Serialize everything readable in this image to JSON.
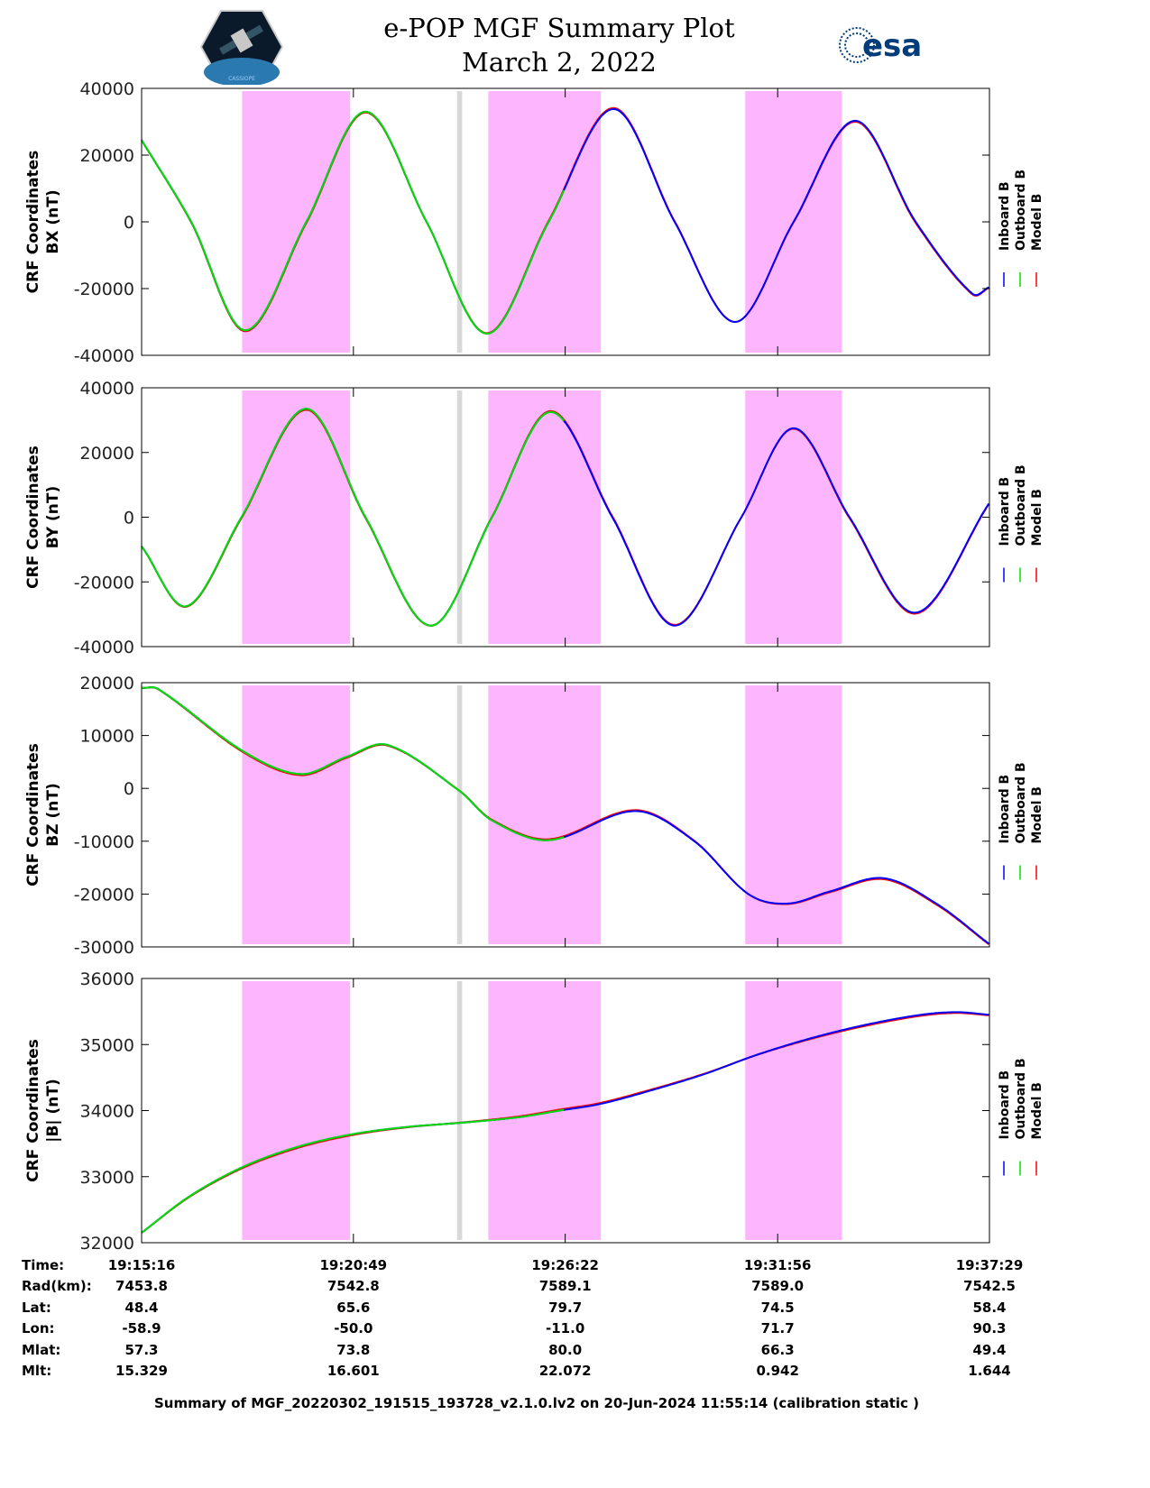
{
  "header": {
    "title": "e-POP MGF Summary Plot",
    "date": "March 2, 2022",
    "logo_left_text": "CASSIOPE",
    "logo_right_text": "esa"
  },
  "chart_data": [
    {
      "type": "line",
      "title": "",
      "ylabel": [
        "CRF Coordinates",
        "BX (nT)"
      ],
      "ylim": [
        -40000,
        40000
      ],
      "yticks": [
        40000,
        20000,
        0,
        -20000,
        -40000
      ],
      "points": [
        [
          0,
          24500
        ],
        [
          78,
          0
        ],
        [
          163,
          -32500
        ],
        [
          259,
          0
        ],
        [
          352,
          33000
        ],
        [
          448,
          0
        ],
        [
          543,
          -33500
        ],
        [
          640,
          0
        ],
        [
          742,
          33800
        ],
        [
          838,
          0
        ],
        [
          933,
          -30000
        ],
        [
          1025,
          0
        ],
        [
          1122,
          30300
        ],
        [
          1217,
          0
        ],
        [
          1306,
          -21500
        ],
        [
          1333,
          -19500
        ]
      ]
    },
    {
      "type": "line",
      "title": "",
      "ylabel": [
        "CRF Coordinates",
        "BY (nT)"
      ],
      "ylim": [
        -40000,
        40000
      ],
      "yticks": [
        40000,
        20000,
        0,
        -20000,
        -40000
      ],
      "points": [
        [
          0,
          -9000
        ],
        [
          71,
          -27500
        ],
        [
          157,
          0
        ],
        [
          259,
          33500
        ],
        [
          352,
          0
        ],
        [
          455,
          -33500
        ],
        [
          551,
          0
        ],
        [
          643,
          32500
        ],
        [
          740,
          0
        ],
        [
          838,
          -33500
        ],
        [
          943,
          0
        ],
        [
          1025,
          27500
        ],
        [
          1113,
          0
        ],
        [
          1217,
          -29500
        ],
        [
          1333,
          4500
        ]
      ]
    },
    {
      "type": "line",
      "title": "",
      "ylabel": [
        "CRF Coordinates",
        "BZ (nT)"
      ],
      "ylim": [
        -30000,
        20000
      ],
      "yticks": [
        20000,
        10000,
        0,
        -10000,
        -20000,
        -30000
      ],
      "points": [
        [
          0,
          19000
        ],
        [
          26,
          18800
        ],
        [
          160,
          7000
        ],
        [
          250,
          2700
        ],
        [
          323,
          6000
        ],
        [
          387,
          8200
        ],
        [
          500,
          -500
        ],
        [
          550,
          -6000
        ],
        [
          640,
          -9800
        ],
        [
          777,
          -4300
        ],
        [
          869,
          -10000
        ],
        [
          954,
          -20000
        ],
        [
          1015,
          -21800
        ],
        [
          1082,
          -19500
        ],
        [
          1167,
          -17000
        ],
        [
          1252,
          -22000
        ],
        [
          1333,
          -29500
        ]
      ]
    },
    {
      "type": "line",
      "title": "",
      "ylabel": [
        "CRF Coordinates",
        "|B| (nT)"
      ],
      "ylim": [
        32000,
        36000
      ],
      "yticks": [
        36000,
        35000,
        34000,
        33000,
        32000
      ],
      "points": [
        [
          0,
          32150
        ],
        [
          75,
          32700
        ],
        [
          160,
          33150
        ],
        [
          245,
          33450
        ],
        [
          330,
          33640
        ],
        [
          415,
          33750
        ],
        [
          508,
          33820
        ],
        [
          593,
          33900
        ],
        [
          657,
          34000
        ],
        [
          721,
          34100
        ],
        [
          799,
          34300
        ],
        [
          884,
          34550
        ],
        [
          969,
          34850
        ],
        [
          1054,
          35100
        ],
        [
          1139,
          35300
        ],
        [
          1225,
          35450
        ],
        [
          1282,
          35490
        ],
        [
          1333,
          35450
        ]
      ]
    }
  ],
  "series": [
    {
      "name": "Inboard B",
      "color": "#0000ff",
      "offset": 0,
      "t_end": 1333
    },
    {
      "name": "Outboard B",
      "color": "#00e000",
      "offset": 0,
      "t_end": 665
    },
    {
      "name": "Model B",
      "color": "#ff0000",
      "offset": -0.004,
      "t_end": 1333
    }
  ],
  "shaded_intervals": [
    [
      158,
      328
    ],
    [
      545,
      722
    ],
    [
      949,
      1101
    ]
  ],
  "gap_interval": [
    496,
    504
  ],
  "colors": {
    "shade": "#fdb6fd",
    "gap": "#d8d8d8"
  },
  "time_axis": {
    "duration_s": 1333,
    "tick_s": [
      0,
      333,
      666,
      1000,
      1333
    ]
  },
  "table": {
    "labels": [
      "Time:",
      "Rad(km):",
      "Lat:",
      "Lon:",
      "Mlat:",
      "Mlt:"
    ],
    "columns": [
      [
        "19:15:16",
        "7453.8",
        "48.4",
        "-58.9",
        "57.3",
        "15.329"
      ],
      [
        "19:20:49",
        "7542.8",
        "65.6",
        "-50.0",
        "73.8",
        "16.601"
      ],
      [
        "19:26:22",
        "7589.1",
        "79.7",
        "-11.0",
        "80.0",
        "22.072"
      ],
      [
        "19:31:56",
        "7589.0",
        "74.5",
        "71.7",
        "66.3",
        "0.942"
      ],
      [
        "19:37:29",
        "7542.5",
        "58.4",
        "90.3",
        "49.4",
        "1.644"
      ]
    ]
  },
  "footer": "Summary of MGF_20220302_191515_193728_v2.1.0.lv2 on 20-Jun-2024 11:55:14 (calibration static )"
}
